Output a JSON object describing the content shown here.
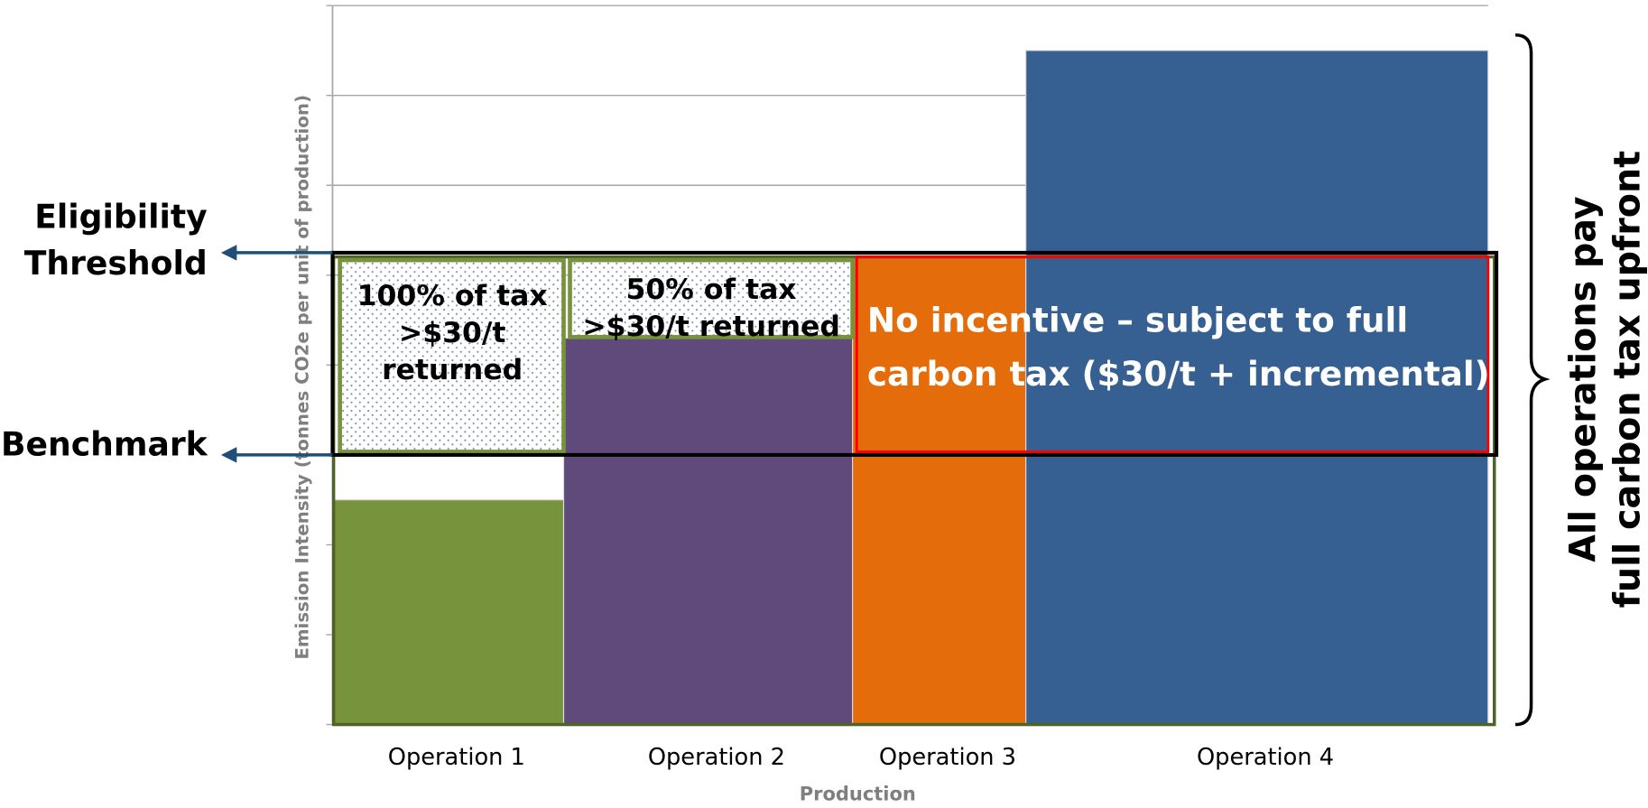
{
  "chart_data": {
    "type": "variable-width-bar",
    "x_label": "Production",
    "y_label": "Emission Intensity  (tonnes CO2e per unit of production)",
    "categories": [
      "Operation 1",
      "Operation 2",
      "Operation 3",
      "Operation 4"
    ],
    "widths": [
      20,
      25,
      15,
      40
    ],
    "xlim": [
      0,
      100
    ],
    "values": [
      2.5,
      4.3,
      5.2,
      7.5
    ],
    "colors": [
      "#77933c",
      "#604a7b",
      "#e46c0a",
      "#376092"
    ],
    "ylim": [
      0,
      8
    ],
    "yticks": [
      0,
      1,
      2,
      3,
      4,
      5,
      6,
      7,
      8
    ],
    "grid": true,
    "benchmark": {
      "label": "Benchmark",
      "value": 3
    },
    "threshold": {
      "label": [
        "Eligibility",
        "Threshold"
      ],
      "value": 5.25
    },
    "annotations": [
      {
        "lines": [
          "100% of tax",
          ">$30/t",
          "returned"
        ]
      },
      {
        "lines": [
          "50% of tax",
          ">$30/t returned"
        ]
      },
      {
        "lines": [
          "No incentive – subject to full",
          "carbon tax ($30/t + incremental)"
        ]
      }
    ],
    "brace_label": [
      "All operations pay",
      "full carbon tax upfront"
    ]
  }
}
